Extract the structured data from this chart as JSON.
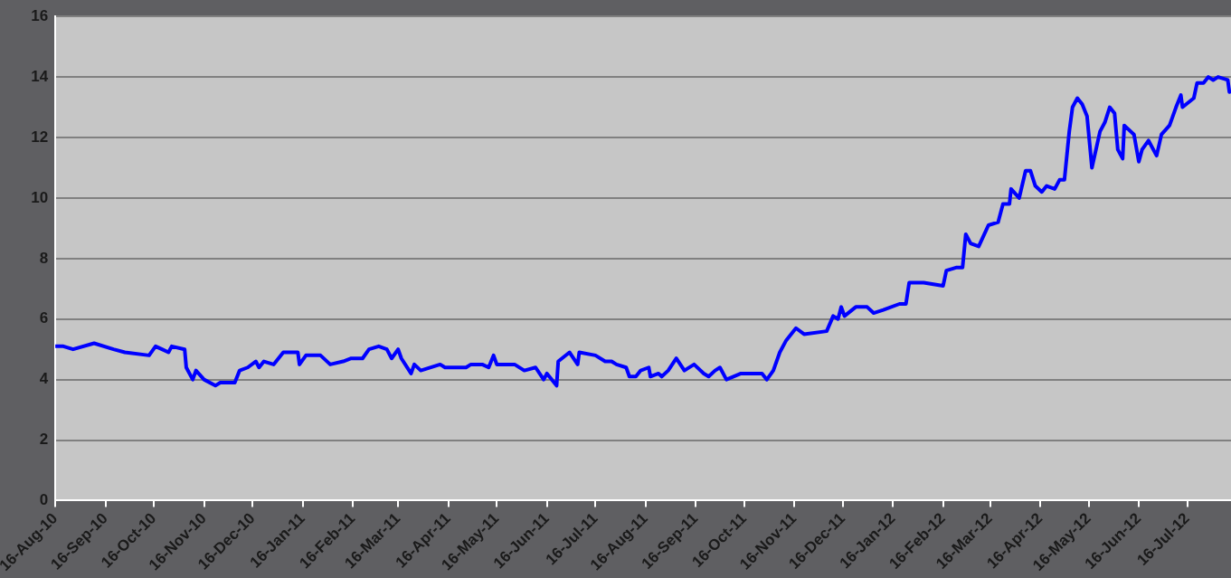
{
  "chart_data": {
    "type": "line",
    "xlim": [
      "2010-08-16",
      "2012-08-12"
    ],
    "ylim": [
      0,
      16
    ],
    "yticks": [
      0,
      2,
      4,
      6,
      8,
      10,
      12,
      14,
      16
    ],
    "xticks": [
      {
        "value": "2010-08-16",
        "label": "16-Aug-10"
      },
      {
        "value": "2010-09-16",
        "label": "16-Sep-10"
      },
      {
        "value": "2010-10-16",
        "label": "16-Oct-10"
      },
      {
        "value": "2010-11-16",
        "label": "16-Nov-10"
      },
      {
        "value": "2010-12-16",
        "label": "16-Dec-10"
      },
      {
        "value": "2011-01-16",
        "label": "16-Jan-11"
      },
      {
        "value": "2011-02-16",
        "label": "16-Feb-11"
      },
      {
        "value": "2011-03-16",
        "label": "16-Mar-11"
      },
      {
        "value": "2011-04-16",
        "label": "16-Apr-11"
      },
      {
        "value": "2011-05-16",
        "label": "16-May-11"
      },
      {
        "value": "2011-06-16",
        "label": "16-Jun-11"
      },
      {
        "value": "2011-07-16",
        "label": "16-Jul-11"
      },
      {
        "value": "2011-08-16",
        "label": "16-Aug-11"
      },
      {
        "value": "2011-09-16",
        "label": "16-Sep-11"
      },
      {
        "value": "2011-10-16",
        "label": "16-Oct-11"
      },
      {
        "value": "2011-11-16",
        "label": "16-Nov-11"
      },
      {
        "value": "2011-12-16",
        "label": "16-Dec-11"
      },
      {
        "value": "2012-01-16",
        "label": "16-Jan-12"
      },
      {
        "value": "2012-02-16",
        "label": "16-Feb-12"
      },
      {
        "value": "2012-03-16",
        "label": "16-Mar-12"
      },
      {
        "value": "2012-04-16",
        "label": "16-Apr-12"
      },
      {
        "value": "2012-05-16",
        "label": "16-May-12"
      },
      {
        "value": "2012-06-16",
        "label": "16-Jun-12"
      },
      {
        "value": "2012-07-16",
        "label": "16-Jul-12"
      }
    ],
    "grid": "y",
    "legend": false,
    "marker": "none",
    "line_style": "solid",
    "x": [
      "2010-08-16",
      "2010-08-21",
      "2010-08-27",
      "2010-09-09",
      "2010-09-21",
      "2010-09-28",
      "2010-10-13",
      "2010-10-17",
      "2010-10-21",
      "2010-10-25",
      "2010-10-27",
      "2010-11-04",
      "2010-11-05",
      "2010-11-09",
      "2010-11-11",
      "2010-11-16",
      "2010-11-23",
      "2010-11-26",
      "2010-12-05",
      "2010-12-08",
      "2010-12-13",
      "2010-12-18",
      "2010-12-20",
      "2010-12-23",
      "2010-12-29",
      "2011-01-04",
      "2011-01-13",
      "2011-01-14",
      "2011-01-18",
      "2011-01-27",
      "2011-02-02",
      "2011-02-10",
      "2011-02-15",
      "2011-02-22",
      "2011-02-26",
      "2011-03-04",
      "2011-03-09",
      "2011-03-12",
      "2011-03-16",
      "2011-03-18",
      "2011-03-24",
      "2011-03-26",
      "2011-03-30",
      "2011-04-11",
      "2011-04-14",
      "2011-04-27",
      "2011-04-30",
      "2011-05-07",
      "2011-05-11",
      "2011-05-14",
      "2011-05-16",
      "2011-05-27",
      "2011-06-02",
      "2011-06-09",
      "2011-06-14",
      "2011-06-16",
      "2011-06-22",
      "2011-06-23",
      "2011-06-30",
      "2011-07-05",
      "2011-07-06",
      "2011-07-16",
      "2011-07-22",
      "2011-07-26",
      "2011-07-29",
      "2011-08-04",
      "2011-08-06",
      "2011-08-10",
      "2011-08-13",
      "2011-08-18",
      "2011-08-19",
      "2011-08-24",
      "2011-08-26",
      "2011-08-30",
      "2011-09-04",
      "2011-09-09",
      "2011-09-15",
      "2011-09-21",
      "2011-09-24",
      "2011-09-28",
      "2011-10-01",
      "2011-10-05",
      "2011-10-14",
      "2011-10-27",
      "2011-10-30",
      "2011-11-03",
      "2011-11-07",
      "2011-11-11",
      "2011-11-17",
      "2011-11-22",
      "2011-12-06",
      "2011-12-10",
      "2011-12-13",
      "2011-12-15",
      "2011-12-17",
      "2011-12-24",
      "2011-12-31",
      "2012-01-04",
      "2012-01-10",
      "2012-01-20",
      "2012-01-24",
      "2012-01-26",
      "2012-02-04",
      "2012-02-16",
      "2012-02-18",
      "2012-02-24",
      "2012-02-28",
      "2012-03-01",
      "2012-03-04",
      "2012-03-09",
      "2012-03-15",
      "2012-03-21",
      "2012-03-24",
      "2012-03-28",
      "2012-03-29",
      "2012-04-03",
      "2012-04-07",
      "2012-04-10",
      "2012-04-13",
      "2012-04-17",
      "2012-04-20",
      "2012-04-25",
      "2012-04-28",
      "2012-05-01",
      "2012-05-04",
      "2012-05-06",
      "2012-05-09",
      "2012-05-12",
      "2012-05-15",
      "2012-05-18",
      "2012-05-23",
      "2012-05-26",
      "2012-05-29",
      "2012-06-01",
      "2012-06-03",
      "2012-06-06",
      "2012-06-07",
      "2012-06-13",
      "2012-06-16",
      "2012-06-18",
      "2012-06-22",
      "2012-06-27",
      "2012-06-30",
      "2012-07-05",
      "2012-07-09",
      "2012-07-12",
      "2012-07-13",
      "2012-07-20",
      "2012-07-22",
      "2012-07-26",
      "2012-07-29",
      "2012-08-01",
      "2012-08-04",
      "2012-08-10",
      "2012-08-11"
    ],
    "series": [
      {
        "color": "#0000ff",
        "values": [
          5.1,
          5.1,
          5.0,
          5.2,
          5.0,
          4.9,
          4.8,
          5.1,
          5.0,
          4.9,
          5.1,
          5.0,
          4.4,
          4.0,
          4.3,
          4.0,
          3.8,
          3.9,
          3.9,
          4.3,
          4.4,
          4.6,
          4.4,
          4.6,
          4.5,
          4.9,
          4.9,
          4.5,
          4.8,
          4.8,
          4.5,
          4.6,
          4.7,
          4.7,
          5.0,
          5.1,
          5.0,
          4.7,
          5.0,
          4.7,
          4.2,
          4.5,
          4.3,
          4.5,
          4.4,
          4.4,
          4.5,
          4.5,
          4.4,
          4.8,
          4.5,
          4.5,
          4.3,
          4.4,
          4.0,
          4.2,
          3.8,
          4.6,
          4.9,
          4.5,
          4.9,
          4.8,
          4.6,
          4.6,
          4.5,
          4.4,
          4.1,
          4.1,
          4.3,
          4.4,
          4.1,
          4.2,
          4.1,
          4.3,
          4.7,
          4.3,
          4.5,
          4.2,
          4.1,
          4.3,
          4.4,
          4.0,
          4.2,
          4.2,
          4.0,
          4.3,
          4.9,
          5.3,
          5.7,
          5.5,
          5.6,
          6.1,
          6.0,
          6.4,
          6.1,
          6.4,
          6.4,
          6.2,
          6.3,
          6.5,
          6.5,
          7.2,
          7.2,
          7.1,
          7.6,
          7.7,
          7.7,
          8.8,
          8.5,
          8.4,
          9.1,
          9.2,
          9.8,
          9.8,
          10.3,
          10.0,
          10.9,
          10.9,
          10.4,
          10.2,
          10.4,
          10.3,
          10.6,
          10.6,
          12.2,
          13.0,
          13.3,
          13.1,
          12.7,
          11.0,
          12.2,
          12.5,
          13.0,
          12.8,
          11.6,
          11.3,
          12.4,
          12.1,
          11.2,
          11.6,
          11.9,
          11.4,
          12.1,
          12.4,
          13.0,
          13.4,
          13.0,
          13.3,
          13.8,
          13.8,
          14.0,
          13.9,
          14.0,
          13.9,
          13.5
        ]
      }
    ]
  }
}
